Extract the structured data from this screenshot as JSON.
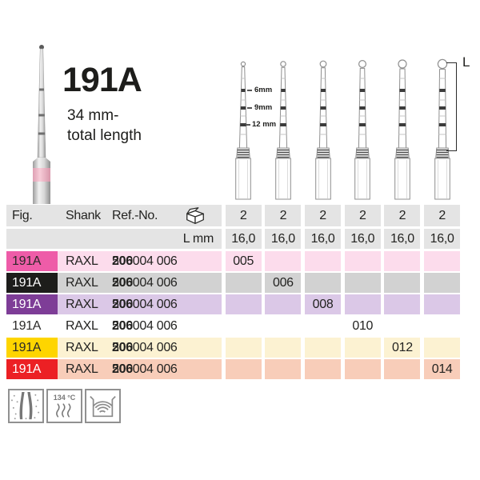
{
  "product": {
    "figure_title": "191A",
    "subtitle_line1": "34 mm-",
    "subtitle_line2": "total length"
  },
  "diagram": {
    "depth_marks": [
      "6mm",
      "9mm",
      "12 mm"
    ],
    "length_label": "L"
  },
  "table": {
    "header": {
      "fig": "Fig.",
      "shank": "Shank",
      "ref_no": "Ref.-No.",
      "pack_icon": "package-box",
      "l_mm_label": "L mm",
      "qty_per_pack": [
        "2",
        "2",
        "2",
        "2",
        "2",
        "2"
      ],
      "l_mm_values": [
        "16,0",
        "16,0",
        "16,0",
        "16,0",
        "16,0",
        "16,0"
      ]
    },
    "rows": [
      {
        "fig": "191A",
        "shank": "RAXL",
        "ref_prefix": "500",
        "ref_bold": "206",
        "ref_suffix": "004 006",
        "size": "005",
        "size_col": 0,
        "colors": {
          "fig_bg": "#ee5ca8",
          "fig_fg": "#2b2a28",
          "row_bg": "#fcdcec"
        }
      },
      {
        "fig": "191A",
        "shank": "RAXL",
        "ref_prefix": "500",
        "ref_bold": "206",
        "ref_suffix": "004 006",
        "size": "006",
        "size_col": 1,
        "colors": {
          "fig_bg": "#1d1d1b",
          "fig_fg": "#ffffff",
          "row_bg": "#d2d2d2"
        }
      },
      {
        "fig": "191A",
        "shank": "RAXL",
        "ref_prefix": "500",
        "ref_bold": "206",
        "ref_suffix": "004 006",
        "size": "008",
        "size_col": 2,
        "colors": {
          "fig_bg": "#7e3d97",
          "fig_fg": "#ffffff",
          "row_bg": "#dbc8e7"
        }
      },
      {
        "fig": "191A",
        "shank": "RAXL",
        "ref_prefix": "500",
        "ref_bold": "206",
        "ref_suffix": "004 006",
        "size": "010",
        "size_col": 3,
        "colors": {
          "fig_bg": "#ffffff",
          "fig_fg": "#2b2a28",
          "row_bg": "#ffffff"
        }
      },
      {
        "fig": "191A",
        "shank": "RAXL",
        "ref_prefix": "500",
        "ref_bold": "206",
        "ref_suffix": "004 006",
        "size": "012",
        "size_col": 4,
        "colors": {
          "fig_bg": "#fed500",
          "fig_fg": "#2b2a28",
          "row_bg": "#fcf2d2"
        }
      },
      {
        "fig": "191A",
        "shank": "RAXL",
        "ref_prefix": "500",
        "ref_bold": "206",
        "ref_suffix": "004 006",
        "size": "014",
        "size_col": 5,
        "colors": {
          "fig_bg": "#ec2024",
          "fig_fg": "#ffffff",
          "row_bg": "#f8cdb9"
        }
      }
    ]
  },
  "footer_icons": [
    {
      "name": "root-canal-icon",
      "label": ""
    },
    {
      "name": "autoclave-icon",
      "label": "134 °C"
    },
    {
      "name": "ultrasonic-bath-icon",
      "label": ""
    }
  ],
  "colors": {
    "header_bg": "#e4e4e4",
    "text": "#232321",
    "diagram_stroke": "#8f8f8f",
    "ring": "#3c3c3c"
  }
}
